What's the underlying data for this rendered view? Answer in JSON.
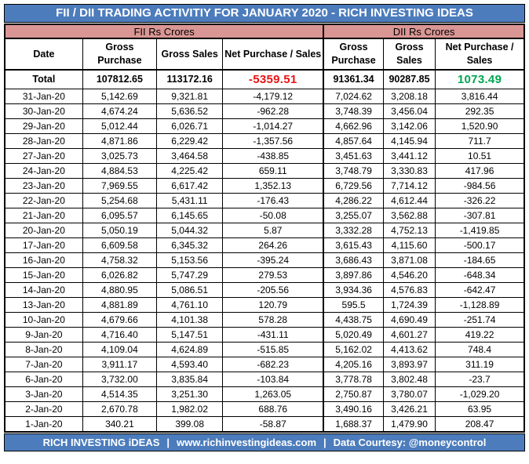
{
  "header": {
    "title": "FII / DII TRADING ACTIVITIY FOR JANUARY 2020 - RICH INVESTING IDEAS"
  },
  "colors": {
    "title_bar_blue": "#4c7cbc",
    "section_band_pink": "#d99694",
    "negative_red": "#e81414",
    "positive_green": "#00a651",
    "border_black": "#000000",
    "text_white": "#ffffff"
  },
  "chart_data": {
    "type": "table",
    "title": "FII / DII TRADING ACTIVITIY FOR JANUARY 2020 - RICH INVESTING IDEAS",
    "section_headers": {
      "fii": "FII Rs Crores",
      "dii": "DII Rs Crores"
    },
    "column_headers": {
      "date": "Date",
      "gross_purchase": "Gross Purchase",
      "gross_sales": "Gross Sales",
      "net": "Net Purchase / Sales"
    },
    "total": {
      "label": "Total",
      "fii_gross_purchase": "107812.65",
      "fii_gross_sales": "113172.16",
      "fii_net": "-5359.51",
      "dii_gross_purchase": "91361.34",
      "dii_gross_sales": "90287.85",
      "dii_net": "1073.49"
    },
    "rows": [
      [
        "31-Jan-20",
        "5,142.69",
        "9,321.81",
        "-4,179.12",
        "7,024.62",
        "3,208.18",
        "3,816.44"
      ],
      [
        "30-Jan-20",
        "4,674.24",
        "5,636.52",
        "-962.28",
        "3,748.39",
        "3,456.04",
        "292.35"
      ],
      [
        "29-Jan-20",
        "5,012.44",
        "6,026.71",
        "-1,014.27",
        "4,662.96",
        "3,142.06",
        "1,520.90"
      ],
      [
        "28-Jan-20",
        "4,871.86",
        "6,229.42",
        "-1,357.56",
        "4,857.64",
        "4,145.94",
        "711.7"
      ],
      [
        "27-Jan-20",
        "3,025.73",
        "3,464.58",
        "-438.85",
        "3,451.63",
        "3,441.12",
        "10.51"
      ],
      [
        "24-Jan-20",
        "4,884.53",
        "4,225.42",
        "659.11",
        "3,748.79",
        "3,330.83",
        "417.96"
      ],
      [
        "23-Jan-20",
        "7,969.55",
        "6,617.42",
        "1,352.13",
        "6,729.56",
        "7,714.12",
        "-984.56"
      ],
      [
        "22-Jan-20",
        "5,254.68",
        "5,431.11",
        "-176.43",
        "4,286.22",
        "4,612.44",
        "-326.22"
      ],
      [
        "21-Jan-20",
        "6,095.57",
        "6,145.65",
        "-50.08",
        "3,255.07",
        "3,562.88",
        "-307.81"
      ],
      [
        "20-Jan-20",
        "5,050.19",
        "5,044.32",
        "5.87",
        "3,332.28",
        "4,752.13",
        "-1,419.85"
      ],
      [
        "17-Jan-20",
        "6,609.58",
        "6,345.32",
        "264.26",
        "3,615.43",
        "4,115.60",
        "-500.17"
      ],
      [
        "16-Jan-20",
        "4,758.32",
        "5,153.56",
        "-395.24",
        "3,686.43",
        "3,871.08",
        "-184.65"
      ],
      [
        "15-Jan-20",
        "6,026.82",
        "5,747.29",
        "279.53",
        "3,897.86",
        "4,546.20",
        "-648.34"
      ],
      [
        "14-Jan-20",
        "4,880.95",
        "5,086.51",
        "-205.56",
        "3,934.36",
        "4,576.83",
        "-642.47"
      ],
      [
        "13-Jan-20",
        "4,881.89",
        "4,761.10",
        "120.79",
        "595.5",
        "1,724.39",
        "-1,128.89"
      ],
      [
        "10-Jan-20",
        "4,679.66",
        "4,101.38",
        "578.28",
        "4,438.75",
        "4,690.49",
        "-251.74"
      ],
      [
        "9-Jan-20",
        "4,716.40",
        "5,147.51",
        "-431.11",
        "5,020.49",
        "4,601.27",
        "419.22"
      ],
      [
        "8-Jan-20",
        "4,109.04",
        "4,624.89",
        "-515.85",
        "5,162.02",
        "4,413.62",
        "748.4"
      ],
      [
        "7-Jan-20",
        "3,911.17",
        "4,593.40",
        "-682.23",
        "4,205.16",
        "3,893.97",
        "311.19"
      ],
      [
        "6-Jan-20",
        "3,732.00",
        "3,835.84",
        "-103.84",
        "3,778.78",
        "3,802.48",
        "-23.7"
      ],
      [
        "3-Jan-20",
        "4,514.35",
        "3,251.30",
        "1,263.05",
        "2,750.87",
        "3,780.07",
        "-1,029.20"
      ],
      [
        "2-Jan-20",
        "2,670.78",
        "1,982.02",
        "688.76",
        "3,490.16",
        "3,426.21",
        "63.95"
      ],
      [
        "1-Jan-20",
        "340.21",
        "399.08",
        "-58.87",
        "1,688.37",
        "1,479.90",
        "208.47"
      ]
    ]
  },
  "footer": {
    "brand": "RICH INVESTING iDEAS",
    "separator": "|",
    "website": "www.richinvestingideas.com",
    "courtesy": "Data Courtesy: @moneycontrol"
  }
}
